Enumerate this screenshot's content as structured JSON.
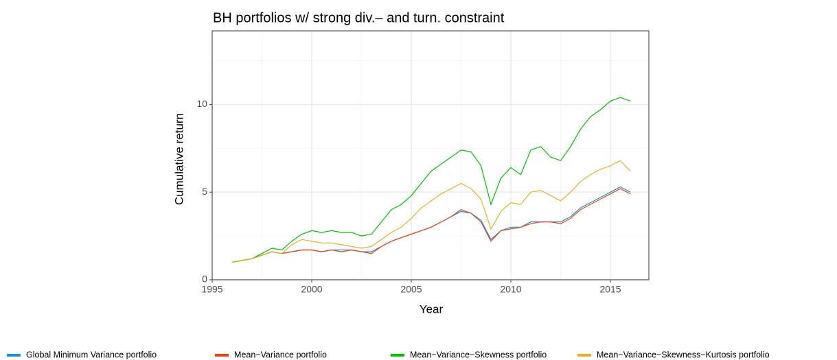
{
  "chart_data": {
    "type": "line",
    "title": "BH portfolios w/ strong div.– and turn. constraint",
    "x_label": "Year",
    "y_label": "Cumulative return",
    "x": [
      1996.0,
      1996.5,
      1997.0,
      1997.5,
      1998.0,
      1998.5,
      1999.0,
      1999.5,
      2000.0,
      2000.5,
      2001.0,
      2001.5,
      2002.0,
      2002.5,
      2003.0,
      2003.5,
      2004.0,
      2004.5,
      2005.0,
      2005.5,
      2006.0,
      2006.5,
      2007.0,
      2007.5,
      2008.0,
      2008.5,
      2009.0,
      2009.5,
      2010.0,
      2010.5,
      2011.0,
      2011.5,
      2012.0,
      2012.5,
      2013.0,
      2013.5,
      2014.0,
      2014.5,
      2015.0,
      2015.5,
      2016.0
    ],
    "series": [
      {
        "name": "Global Minimum Variance portfolio",
        "color": "#1b8fd0",
        "values": [
          1.0,
          1.1,
          1.2,
          1.4,
          1.6,
          1.5,
          1.6,
          1.7,
          1.7,
          1.6,
          1.7,
          1.7,
          1.7,
          1.6,
          1.6,
          1.9,
          2.2,
          2.4,
          2.6,
          2.8,
          3.0,
          3.3,
          3.6,
          3.9,
          3.8,
          3.4,
          2.3,
          2.8,
          3.0,
          3.0,
          3.3,
          3.3,
          3.3,
          3.3,
          3.6,
          4.1,
          4.4,
          4.7,
          5.0,
          5.3,
          5.0
        ]
      },
      {
        "name": "Mean−Variance portfolio",
        "color": "#e8420e",
        "values": [
          1.0,
          1.1,
          1.2,
          1.4,
          1.6,
          1.5,
          1.6,
          1.7,
          1.7,
          1.6,
          1.7,
          1.6,
          1.7,
          1.6,
          1.5,
          1.9,
          2.2,
          2.4,
          2.6,
          2.8,
          3.0,
          3.3,
          3.6,
          4.0,
          3.8,
          3.3,
          2.2,
          2.8,
          2.9,
          3.0,
          3.2,
          3.3,
          3.3,
          3.2,
          3.5,
          4.0,
          4.3,
          4.6,
          4.9,
          5.2,
          4.9
        ]
      },
      {
        "name": "Mean−Variance−Skewness portfolio",
        "color": "#00c000",
        "values": [
          1.0,
          1.1,
          1.2,
          1.5,
          1.8,
          1.7,
          2.2,
          2.6,
          2.8,
          2.7,
          2.8,
          2.7,
          2.7,
          2.5,
          2.6,
          3.3,
          4.0,
          4.3,
          4.8,
          5.5,
          6.2,
          6.6,
          7.0,
          7.4,
          7.3,
          6.5,
          4.3,
          5.8,
          6.4,
          6.0,
          7.4,
          7.6,
          7.0,
          6.8,
          7.6,
          8.6,
          9.3,
          9.7,
          10.2,
          10.4,
          10.2
        ]
      },
      {
        "name": "Mean−Variance−Skewness−Kurtosis portfolio",
        "color": "#e6b022",
        "values": [
          1.0,
          1.1,
          1.2,
          1.4,
          1.6,
          1.5,
          2.0,
          2.3,
          2.2,
          2.1,
          2.1,
          2.0,
          1.9,
          1.8,
          1.9,
          2.3,
          2.7,
          3.0,
          3.5,
          4.1,
          4.5,
          4.9,
          5.2,
          5.5,
          5.2,
          4.6,
          2.9,
          3.9,
          4.4,
          4.3,
          5.0,
          5.1,
          4.8,
          4.5,
          5.0,
          5.6,
          6.0,
          6.3,
          6.5,
          6.8,
          6.2
        ]
      }
    ],
    "xlim": [
      1995,
      2016.93
    ],
    "xticks": [
      1995,
      2000,
      2005,
      2010,
      2015
    ],
    "minor_xticks": [
      1997.5,
      2002.5,
      2007.5,
      2012.5
    ],
    "ylim": [
      0,
      14.2
    ],
    "yticks": [
      0,
      5,
      10
    ],
    "minor_yticks": [
      2.5,
      7.5,
      12.5
    ],
    "grid": true,
    "legend": "bottom"
  }
}
